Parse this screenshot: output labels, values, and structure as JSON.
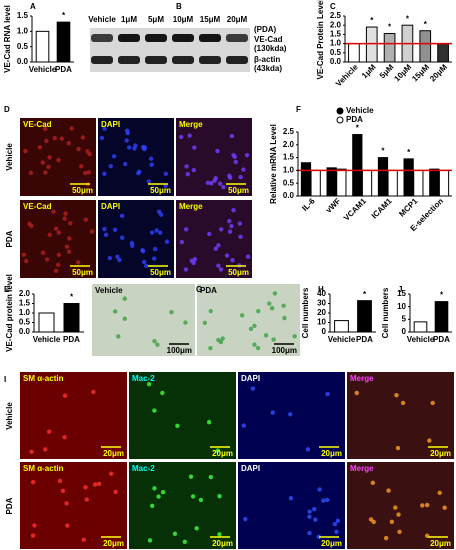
{
  "panel_letters": [
    "A",
    "B",
    "C",
    "D",
    "E",
    "F",
    "G",
    "H",
    "I",
    "J"
  ],
  "chart_data": [
    {
      "type": "bar",
      "ylabel": "VE-Cad RNA level",
      "categories": [
        "Vehicle",
        "PDA"
      ],
      "values": [
        1.0,
        1.3
      ],
      "colors": [
        "#ffffff",
        "#000000"
      ],
      "significance": [
        null,
        "*"
      ],
      "ylim": [
        0,
        1.5
      ],
      "yticks": [
        {
          "value": 0,
          "label": "0.0"
        },
        {
          "value": 0.5,
          "label": "0.5"
        },
        {
          "value": 1,
          "label": "1.0"
        },
        {
          "value": 1.5,
          "label": "1.5"
        }
      ]
    },
    {
      "type": "bar",
      "ylabel": "VE-Cad Protein Level",
      "categories": [
        "Vehicle",
        "1μM",
        "5μM",
        "10μM",
        "15μM",
        "20μM"
      ],
      "values": [
        1.0,
        1.9,
        1.55,
        2.0,
        1.7,
        1.0
      ],
      "colors": [
        "#ffffff",
        "#e0e0e0",
        "#b0b0b0",
        "#d0d0d0",
        "#909090",
        "#303030"
      ],
      "significance": [
        null,
        "*",
        "*",
        "*",
        "*",
        null
      ],
      "ref_line": {
        "value": 1.0,
        "color": "#e00000"
      },
      "ylim": [
        0,
        2.5
      ],
      "yticks": [
        {
          "value": 0,
          "label": "0.0"
        },
        {
          "value": 0.5,
          "label": "0.5"
        },
        {
          "value": 1,
          "label": "1.0"
        },
        {
          "value": 1.5,
          "label": "1.5"
        },
        {
          "value": 2,
          "label": "2.0"
        },
        {
          "value": 2.5,
          "label": "2.5"
        }
      ]
    },
    {
      "type": "grouped_bar",
      "ylabel": "Relative mRNA Level",
      "categories": [
        "IL-6",
        "vWF",
        "VCAM1",
        "ICAM1",
        "MCP1",
        "E-selection"
      ],
      "series": [
        {
          "name": "Vehicle",
          "color": "#000000",
          "values": [
            1.3,
            1.1,
            2.4,
            1.5,
            1.45,
            1.05
          ],
          "significance": [
            null,
            null,
            "*",
            "*",
            "*",
            null
          ]
        },
        {
          "name": "PDA",
          "color": "#ffffff",
          "values": [
            1.0,
            1.05,
            1.0,
            1.0,
            1.0,
            1.0
          ]
        }
      ],
      "ref_line": {
        "value": 1.0,
        "color": "#e00000"
      },
      "ylim": [
        0,
        2.5
      ],
      "yticks": [
        {
          "value": 0,
          "label": "0.0"
        },
        {
          "value": 0.5,
          "label": "0.5"
        },
        {
          "value": 1,
          "label": "1.0"
        },
        {
          "value": 1.5,
          "label": "1.5"
        },
        {
          "value": 2,
          "label": "2.0"
        },
        {
          "value": 2.5,
          "label": "2.5"
        }
      ]
    },
    {
      "type": "bar",
      "ylabel": "VE-Cad protein level",
      "categories": [
        "Vehicle",
        "PDA"
      ],
      "values": [
        1.0,
        1.5
      ],
      "colors": [
        "#ffffff",
        "#000000"
      ],
      "significance": [
        null,
        "*"
      ],
      "ylim": [
        0,
        2
      ],
      "yticks": [
        {
          "value": 0,
          "label": "0.0"
        },
        {
          "value": 0.5,
          "label": "0.5"
        },
        {
          "value": 1,
          "label": "1.0"
        },
        {
          "value": 1.5,
          "label": "1.5"
        },
        {
          "value": 2,
          "label": "2.0"
        }
      ]
    },
    {
      "type": "bar",
      "ylabel": "Cell numbers",
      "categories": [
        "Vehicle",
        "PDA"
      ],
      "values": [
        12,
        33
      ],
      "colors": [
        "#ffffff",
        "#000000"
      ],
      "significance": [
        null,
        "*"
      ],
      "ylim": [
        0,
        40
      ],
      "yticks": [
        0,
        10,
        20,
        30,
        40
      ]
    },
    {
      "type": "bar",
      "ylabel": "Cell numbers",
      "categories": [
        "Vehicle",
        "PDA"
      ],
      "values": [
        4,
        12
      ],
      "colors": [
        "#ffffff",
        "#000000"
      ],
      "significance": [
        null,
        "*"
      ],
      "ylim": [
        0,
        15
      ],
      "yticks": [
        0,
        5,
        10,
        15
      ]
    }
  ],
  "blot": {
    "lanes": [
      "Vehicle",
      "1μM",
      "5μM",
      "10μM",
      "15μM",
      "20μM"
    ],
    "treatment": "(PDA)",
    "bands": [
      [
        "VE-Cad",
        "(130kda)"
      ],
      [
        "β-actin",
        "(43kda)"
      ]
    ]
  },
  "micrographs_D": {
    "rows": [
      "Vehicle",
      "PDA"
    ],
    "channels": [
      [
        "VE-Cad",
        "DAPI",
        "Merge"
      ],
      [
        "VE-Cad",
        "DAPI",
        "Merge"
      ]
    ],
    "scale": [
      [
        "50μm",
        "50μm",
        "50μm"
      ],
      [
        "50μm",
        "50μm",
        "50μm"
      ]
    ]
  },
  "micrographs_G": {
    "panels": [
      "Vehicle",
      "PDA"
    ],
    "scale": [
      "100μm",
      "100μm"
    ]
  },
  "micrographs_I": {
    "rows": [
      "Vehicle",
      "PDA"
    ],
    "channels": [
      [
        "SM α-actin",
        "Mac-2",
        "DAPI",
        "Merge"
      ],
      [
        "SM α-actin",
        "Mac-2",
        "DAPI",
        "Merge"
      ]
    ],
    "scale": [
      [
        "20μm",
        "20μm",
        "20μm",
        "20μm"
      ],
      [
        "20μm",
        "20μm",
        "20μm",
        "20μm"
      ]
    ]
  }
}
